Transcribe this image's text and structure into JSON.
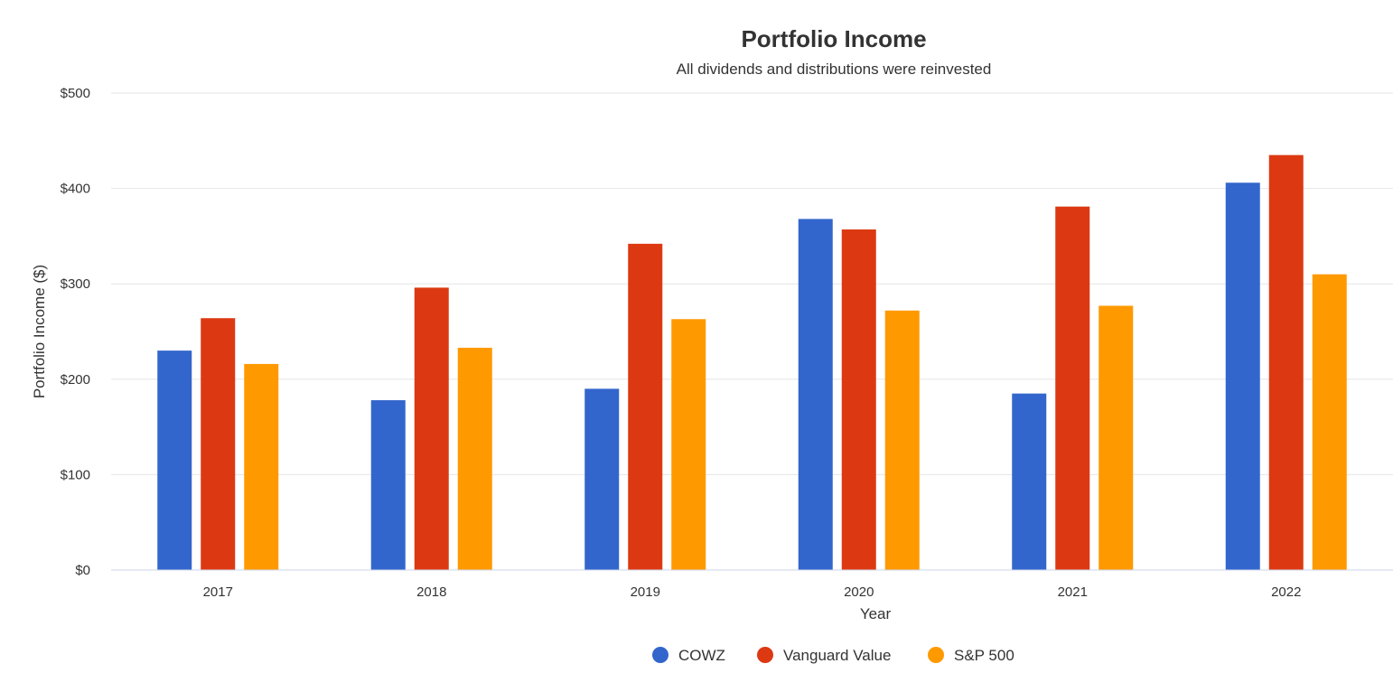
{
  "chart_data": {
    "type": "bar",
    "title": "Portfolio Income",
    "subtitle": "All dividends and distributions were reinvested",
    "xlabel": "Year",
    "ylabel": "Portfolio Income ($)",
    "categories": [
      "2017",
      "2018",
      "2019",
      "2020",
      "2021",
      "2022"
    ],
    "ylim": [
      0,
      500
    ],
    "yticks": [
      0,
      100,
      200,
      300,
      400,
      500
    ],
    "ytick_labels": [
      "$0",
      "$100",
      "$200",
      "$300",
      "$400",
      "$500"
    ],
    "grid": true,
    "legend_position": "bottom-center",
    "series": [
      {
        "name": "COWZ",
        "color": "#3366cc",
        "values": [
          230,
          178,
          190,
          368,
          185,
          406
        ]
      },
      {
        "name": "Vanguard Value",
        "color": "#dc3912",
        "values": [
          264,
          296,
          342,
          357,
          381,
          435
        ]
      },
      {
        "name": "S&P 500",
        "color": "#ff9900",
        "values": [
          216,
          233,
          263,
          272,
          277,
          310
        ]
      }
    ]
  }
}
